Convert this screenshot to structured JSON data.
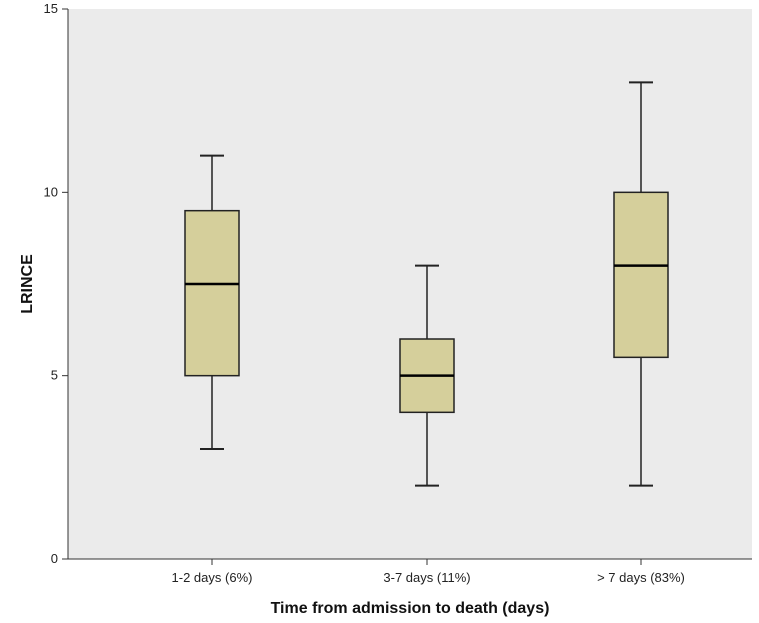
{
  "colors": {
    "plot_background": "#ebebeb",
    "box_fill": "#d5cf9b",
    "box_stroke": "#222222",
    "whisker": "#222222",
    "median": "#000000"
  },
  "chart_data": {
    "type": "boxplot",
    "title": "",
    "xlabel": "Time from admission to death (days)",
    "ylabel": "LRINCE",
    "ylim": [
      0,
      15
    ],
    "yticks": [
      "0",
      "5",
      "10",
      "15"
    ],
    "grid": false,
    "categories": [
      "1-2 days (6%)",
      "3-7 days (11%)",
      "> 7 days (83%)"
    ],
    "boxes": [
      {
        "min": 3,
        "q1": 5,
        "median": 7.5,
        "q3": 9.5,
        "max": 11
      },
      {
        "min": 2,
        "q1": 4,
        "median": 5,
        "q3": 6,
        "max": 8
      },
      {
        "min": 2,
        "q1": 5.5,
        "median": 8,
        "q3": 10,
        "max": 13
      }
    ]
  }
}
